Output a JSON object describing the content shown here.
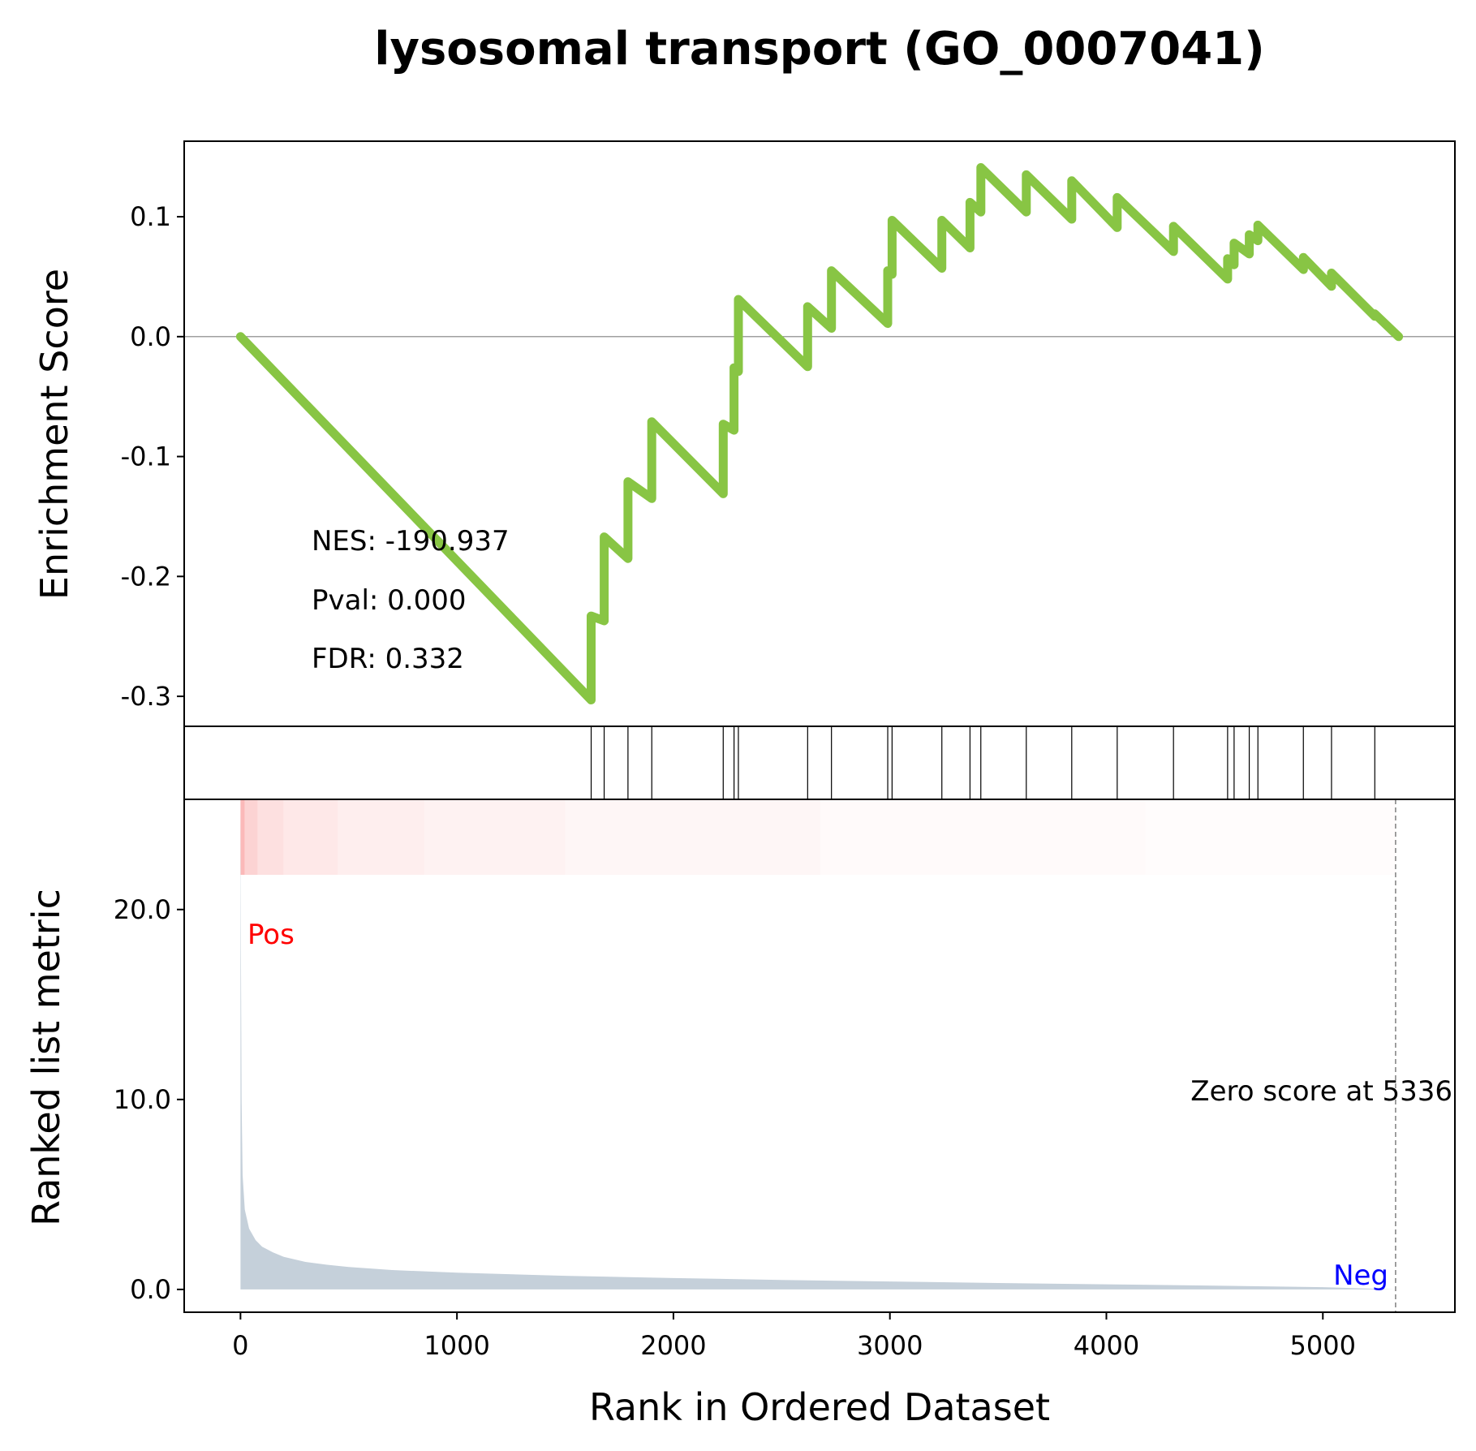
{
  "chart_data": {
    "type": "line",
    "title": "lysosomal transport (GO_0007041)",
    "xlabel": "Rank in Ordered Dataset",
    "es_ylabel": "Enrichment Score",
    "rank_ylabel": "Ranked list metric",
    "xlim": [
      -260,
      5610
    ],
    "x_ticks": [
      0,
      1000,
      2000,
      3000,
      4000,
      5000
    ],
    "x_tick_labels": [
      "0",
      "1000",
      "2000",
      "3000",
      "4000",
      "5000"
    ],
    "es_ylim": [
      -0.325,
      0.163
    ],
    "es_ticks": [
      0.1,
      0.0,
      -0.1,
      -0.2,
      -0.3
    ],
    "es_tick_labels": [
      "0.1",
      "0.0",
      "-0.1",
      "-0.2",
      "-0.3"
    ],
    "rank_ylim": [
      -1.2,
      25.8
    ],
    "rank_ticks": [
      20.0,
      10.0,
      0.0
    ],
    "rank_tick_labels": [
      "20.0",
      "10.0",
      "0.0"
    ],
    "series": [
      {
        "label": "es-curve",
        "color": "#88c544",
        "hits": [
          1620,
          1680,
          1790,
          1900,
          2230,
          2280,
          2300,
          2620,
          2730,
          2990,
          3010,
          3240,
          3370,
          3420,
          3630,
          3840,
          4050,
          4310,
          4560,
          4590,
          4660,
          4700,
          4910,
          5040,
          5240
        ],
        "points": [
          [
            0,
            0.0
          ],
          [
            1620,
            -0.303
          ],
          [
            1620,
            -0.233
          ],
          [
            1680,
            -0.237
          ],
          [
            1680,
            -0.167
          ],
          [
            1790,
            -0.185
          ],
          [
            1790,
            -0.121
          ],
          [
            1900,
            -0.135
          ],
          [
            1900,
            -0.071
          ],
          [
            2230,
            -0.131
          ],
          [
            2230,
            -0.073
          ],
          [
            2280,
            -0.078
          ],
          [
            2280,
            -0.026
          ],
          [
            2300,
            -0.029
          ],
          [
            2300,
            0.031
          ],
          [
            2620,
            -0.025
          ],
          [
            2620,
            0.025
          ],
          [
            2730,
            0.007
          ],
          [
            2730,
            0.055
          ],
          [
            2990,
            0.011
          ],
          [
            2990,
            0.055
          ],
          [
            3010,
            0.052
          ],
          [
            3010,
            0.097
          ],
          [
            3240,
            0.057
          ],
          [
            3240,
            0.097
          ],
          [
            3370,
            0.074
          ],
          [
            3370,
            0.112
          ],
          [
            3420,
            0.104
          ],
          [
            3420,
            0.141
          ],
          [
            3630,
            0.104
          ],
          [
            3630,
            0.135
          ],
          [
            3840,
            0.098
          ],
          [
            3840,
            0.13
          ],
          [
            4050,
            0.091
          ],
          [
            4050,
            0.116
          ],
          [
            4310,
            0.071
          ],
          [
            4310,
            0.092
          ],
          [
            4560,
            0.048
          ],
          [
            4560,
            0.065
          ],
          [
            4590,
            0.06
          ],
          [
            4590,
            0.078
          ],
          [
            4660,
            0.069
          ],
          [
            4660,
            0.085
          ],
          [
            4700,
            0.08
          ],
          [
            4700,
            0.093
          ],
          [
            4910,
            0.056
          ],
          [
            4910,
            0.066
          ],
          [
            5040,
            0.042
          ],
          [
            5040,
            0.053
          ],
          [
            5240,
            0.017
          ],
          [
            5240,
            0.019
          ],
          [
            5350,
            0.0
          ]
        ]
      },
      {
        "label": "ranked-metric",
        "color": "#c5d0da",
        "points": [
          [
            0,
            25.5
          ],
          [
            2,
            18.0
          ],
          [
            5,
            10.0
          ],
          [
            10,
            6.0
          ],
          [
            20,
            4.2
          ],
          [
            40,
            3.2
          ],
          [
            70,
            2.6
          ],
          [
            100,
            2.25
          ],
          [
            150,
            1.95
          ],
          [
            200,
            1.72
          ],
          [
            300,
            1.45
          ],
          [
            400,
            1.3
          ],
          [
            500,
            1.18
          ],
          [
            700,
            1.02
          ],
          [
            1000,
            0.88
          ],
          [
            1500,
            0.72
          ],
          [
            2000,
            0.6
          ],
          [
            2500,
            0.5
          ],
          [
            3000,
            0.42
          ],
          [
            3500,
            0.34
          ],
          [
            4000,
            0.27
          ],
          [
            4500,
            0.2
          ],
          [
            5000,
            0.12
          ],
          [
            5336,
            0.0
          ]
        ]
      }
    ],
    "annotations": {
      "nes": "NES: -190.937",
      "pval": "Pval: 0.000",
      "fdr": "FDR: 0.332",
      "pos": "Pos",
      "neg": "Neg",
      "zero": "Zero score at 5336"
    },
    "zero_score_rank": 5336,
    "heat_bands": [
      {
        "from": 0,
        "to": 20,
        "color": "#fbb9b9"
      },
      {
        "from": 20,
        "to": 80,
        "color": "#fcd3d3"
      },
      {
        "from": 80,
        "to": 200,
        "color": "#fde0e0"
      },
      {
        "from": 200,
        "to": 450,
        "color": "#fee8e8"
      },
      {
        "from": 450,
        "to": 850,
        "color": "#feeeee"
      },
      {
        "from": 850,
        "to": 1500,
        "color": "#fef2f2"
      },
      {
        "from": 1500,
        "to": 2680,
        "color": "#fef6f6"
      },
      {
        "from": 2680,
        "to": 4180,
        "color": "#fffafa"
      },
      {
        "from": 4180,
        "to": 5336,
        "color": "#fffcfc"
      }
    ],
    "colors": {
      "annot_text": "#000000",
      "pos_label": "#ff0000",
      "neg_label": "#0000ff",
      "zero_line": "#808080",
      "frame": "#000000"
    },
    "grid": false
  }
}
